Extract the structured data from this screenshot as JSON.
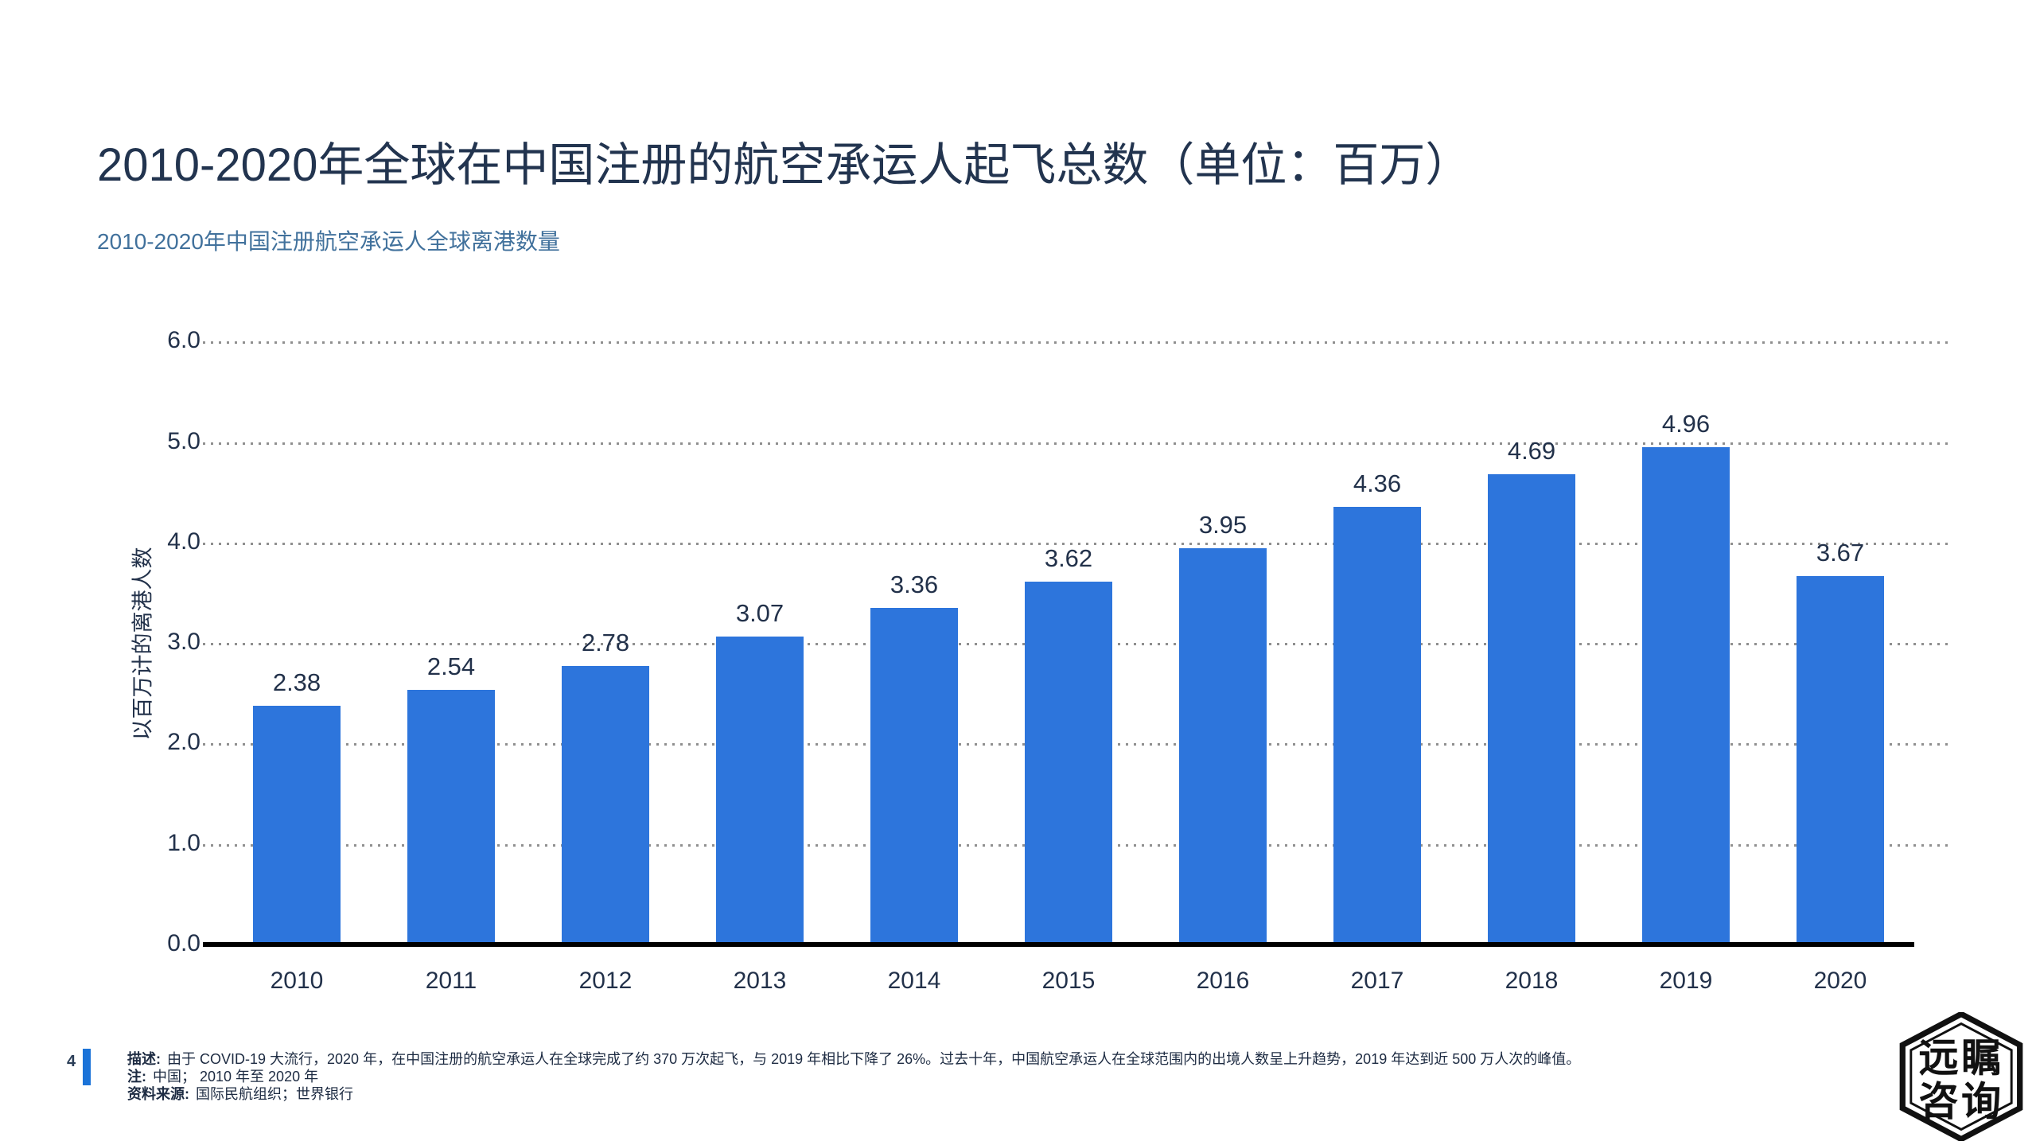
{
  "page": {
    "title": "2010-2020年全球在中国注册的航空承运人起飞总数（单位：百万）",
    "subtitle": "2010-2020年中国注册航空承运人全球离港数量",
    "page_number": "4",
    "footer": {
      "desc_label": "描述:",
      "desc_text": "由于 COVID-19 大流行，2020 年，在中国注册的航空承运人在全球完成了约 370 万次起飞，与 2019 年相比下降了 26%。过去十年，中国航空承运人在全球范围内的出境人数呈上升趋势，2019 年达到近 500 万人次的峰值。",
      "note_label": "注:",
      "note_text": "中国； 2010 年至 2020 年",
      "source_label": "资料来源:",
      "source_text": "国际民航组织；世界银行"
    },
    "logo": {
      "line1": "远瞩",
      "line2": "咨询"
    }
  },
  "colors": {
    "bar": "#2D75DC",
    "accent_bar": "#1B73D8",
    "title": "#22344F",
    "subtitle": "#41719C",
    "tick_label": "#22314A",
    "axis_line": "#000000",
    "gridline": "#8f8f8f"
  },
  "chart_data": {
    "type": "bar",
    "title": "2010-2020年中国注册航空承运人全球离港数量",
    "categories": [
      "2010",
      "2011",
      "2012",
      "2013",
      "2014",
      "2015",
      "2016",
      "2017",
      "2018",
      "2019",
      "2020"
    ],
    "values": [
      2.38,
      2.54,
      2.78,
      3.07,
      3.36,
      3.62,
      3.95,
      4.36,
      4.69,
      4.96,
      3.67
    ],
    "xlabel": "",
    "ylabel": "以百万计的离港人数",
    "ylim": [
      0.0,
      6.0
    ],
    "ytick_step": 1.0,
    "ytick_labels": [
      "0.0",
      "1.0",
      "2.0",
      "3.0",
      "4.0",
      "5.0",
      "6.0"
    ],
    "grid": "horizontal-dotted",
    "legend": "none",
    "data_labels": "above-bars"
  }
}
